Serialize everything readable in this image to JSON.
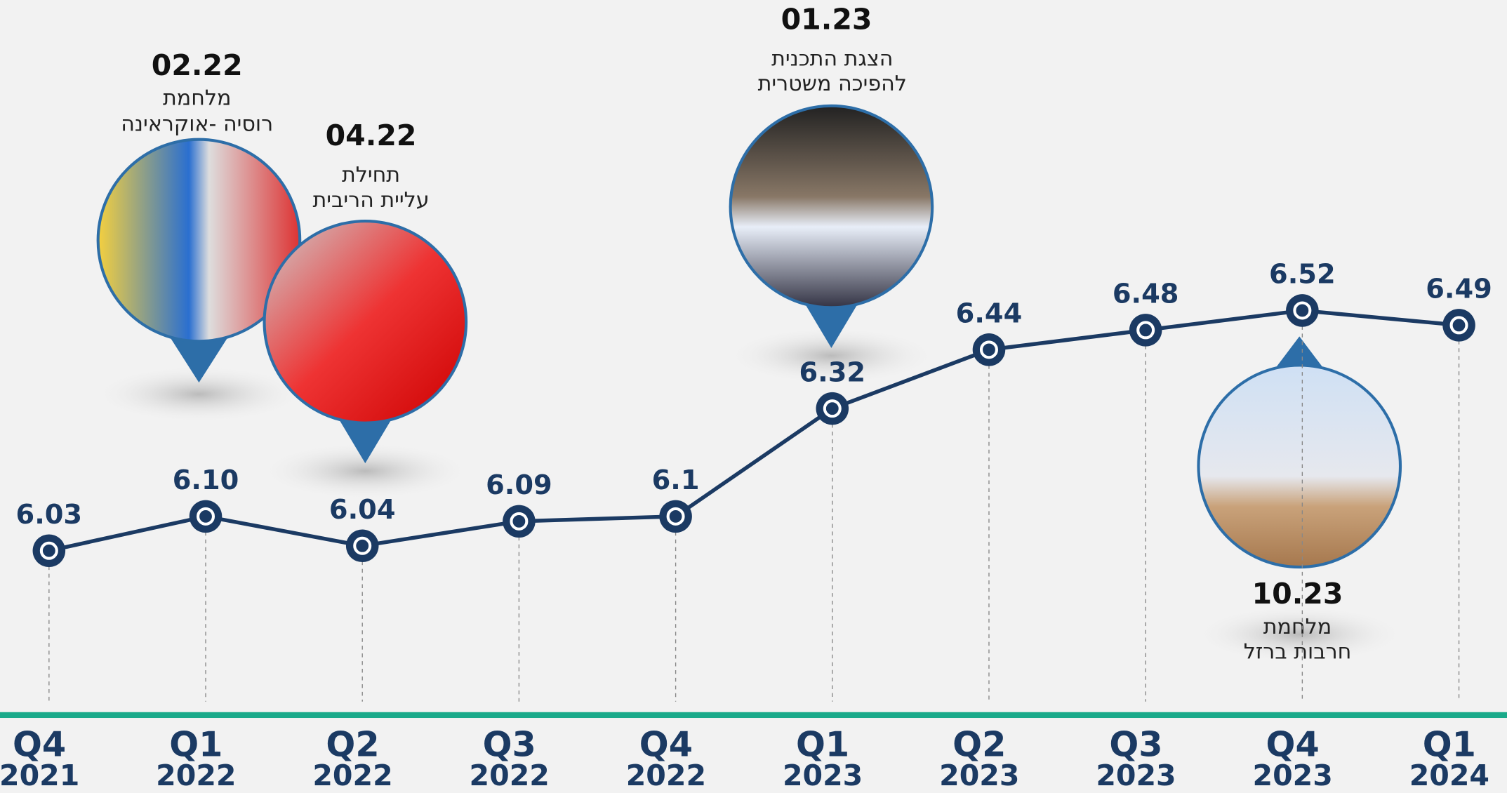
{
  "chart_data": {
    "type": "line",
    "categories": [
      [
        "Q4",
        "2021"
      ],
      [
        "Q1",
        "2022"
      ],
      [
        "Q2",
        "2022"
      ],
      [
        "Q3",
        "2022"
      ],
      [
        "Q4",
        "2022"
      ],
      [
        "Q1",
        "2023"
      ],
      [
        "Q2",
        "2023"
      ],
      [
        "Q3",
        "2023"
      ],
      [
        "Q4",
        "2023"
      ],
      [
        "Q1",
        "2024"
      ]
    ],
    "values": [
      6.03,
      6.1,
      6.04,
      6.09,
      6.1,
      6.32,
      6.44,
      6.48,
      6.52,
      6.49
    ],
    "value_labels": [
      "6.03",
      "6.10",
      "6.04",
      "6.09",
      "6.1",
      "6.32",
      "6.44",
      "6.48",
      "6.52",
      "6.49"
    ],
    "color": "#1b3a63",
    "annotations": [
      {
        "date": "02.22",
        "text": [
          "מלחמת",
          "רוסיה -אוקראינה"
        ]
      },
      {
        "date": "04.22",
        "text": [
          "תחילת",
          "עליית הריבית"
        ]
      },
      {
        "date": "01.23",
        "text": [
          "הצגת התכנית",
          "להפיכה משטרית"
        ]
      },
      {
        "date": "10.23",
        "text": [
          "מלחמת",
          "חרבות ברזל"
        ]
      }
    ]
  }
}
